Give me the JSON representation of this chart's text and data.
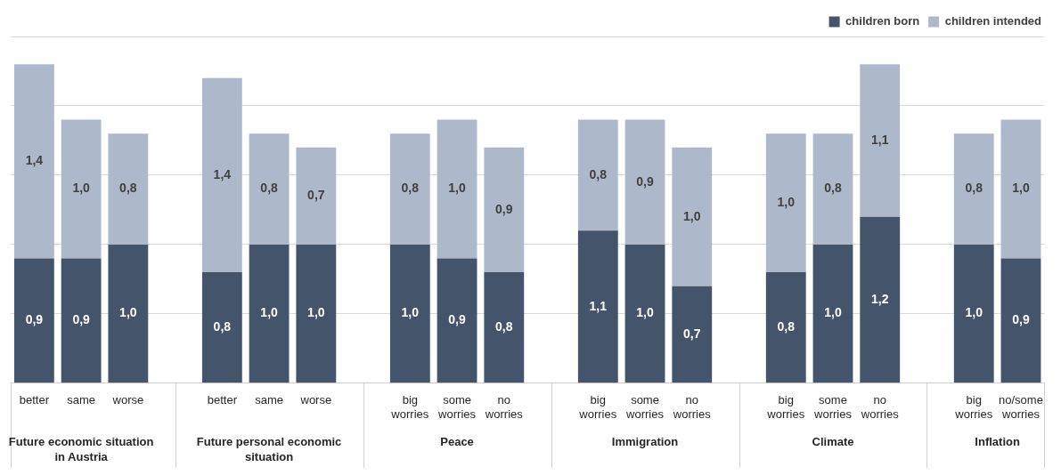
{
  "chart_data": {
    "type": "bar",
    "stacked": true,
    "categories": [
      "better",
      "same",
      "worse",
      null,
      "better",
      "same",
      "worse",
      null,
      "big worries",
      "some worries",
      "no worries",
      null,
      "big worries",
      "some worries",
      "no worries",
      null,
      "big worries",
      "some worries",
      "no worries",
      null,
      "big worries",
      "no/some worries"
    ],
    "series": [
      {
        "name": "children born",
        "color": "#44546a",
        "values": [
          0.9,
          0.9,
          1.0,
          null,
          0.8,
          1.0,
          1.0,
          null,
          1.0,
          0.9,
          0.8,
          null,
          1.1,
          1.0,
          0.7,
          null,
          0.8,
          1.0,
          1.2,
          null,
          1.0,
          0.9
        ],
        "value_labels": [
          "0,9",
          "0,9",
          "1,0",
          null,
          "0,8",
          "1,0",
          "1,0",
          null,
          "1,0",
          "0,9",
          "0,8",
          null,
          "1,1",
          "1,0",
          "0,7",
          null,
          "0,8",
          "1,0",
          "1,2",
          null,
          "1,0",
          "0,9"
        ]
      },
      {
        "name": "children intended",
        "color": "#adb9ca",
        "values": [
          1.4,
          1.0,
          0.8,
          null,
          1.4,
          0.8,
          0.7,
          null,
          0.8,
          1.0,
          0.9,
          null,
          0.8,
          0.9,
          1.0,
          null,
          1.0,
          0.8,
          1.1,
          null,
          0.8,
          1.0
        ],
        "value_labels": [
          "1,4",
          "1,0",
          "0,8",
          null,
          "1,4",
          "0,8",
          "0,7",
          null,
          "0,8",
          "1,0",
          "0,9",
          null,
          "0,8",
          "0,9",
          "1,0",
          null,
          "1,0",
          "0,8",
          "1,1",
          null,
          "0,8",
          "1,0"
        ]
      }
    ],
    "annotations": [
      "Future economic situation in Austria",
      "Future personal economic situation",
      "Peace",
      "Immigration",
      "Climate",
      "Inflation"
    ],
    "tick_labels": "x",
    "grid": "y",
    "legend": "top right"
  }
}
